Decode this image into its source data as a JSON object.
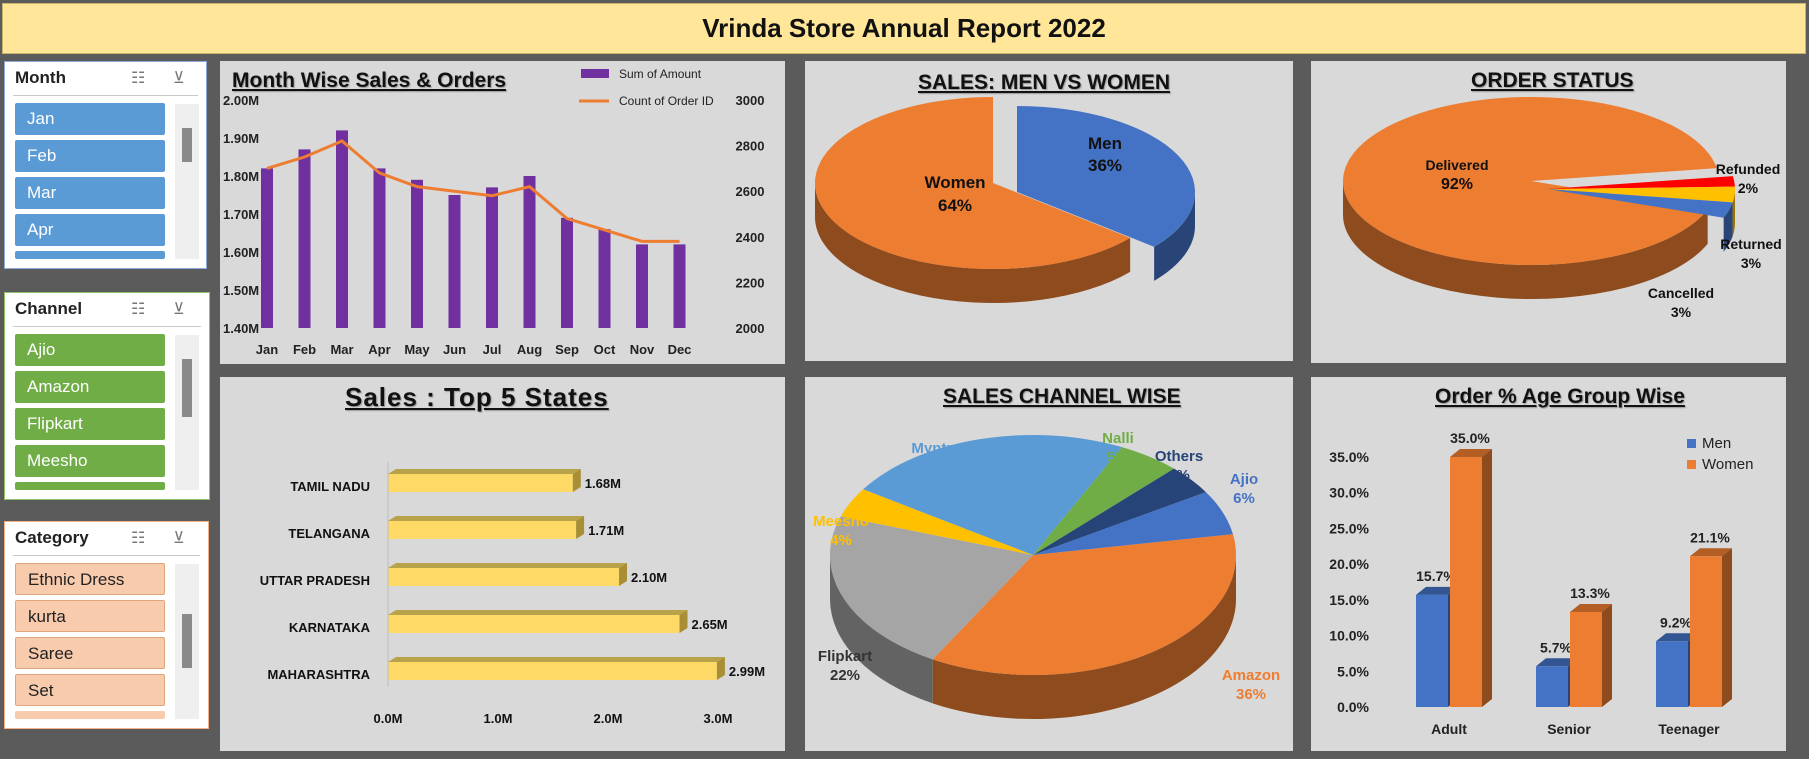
{
  "report": {
    "title": "Vrinda Store Annual Report 2022"
  },
  "slicers": {
    "month": {
      "label": "Month",
      "items": [
        "Jan",
        "Feb",
        "Mar",
        "Apr"
      ]
    },
    "channel": {
      "label": "Channel",
      "items": [
        "Ajio",
        "Amazon",
        "Flipkart",
        "Meesho"
      ]
    },
    "category": {
      "label": "Category",
      "items": [
        "Ethnic Dress",
        "kurta",
        "Saree",
        "Set"
      ]
    }
  },
  "icons": {
    "multi_select": "multi-select-icon",
    "clear_filter": "clear-filter-icon"
  },
  "colors": {
    "title_bg": "#ffe699",
    "panel_bg": "#d9d9d9",
    "purple": "#7030a0",
    "orange": "#ed7d31",
    "blue": "#4472c4",
    "month_slicer": "#5b9bd5",
    "channel_slicer": "#70ad47",
    "category_slicer": "#f8cbad"
  },
  "chart_data": [
    {
      "id": "month-wise",
      "type": "bar",
      "title": "Month Wise Sales & Orders",
      "categories": [
        "Jan",
        "Feb",
        "Mar",
        "Apr",
        "May",
        "Jun",
        "Jul",
        "Aug",
        "Sep",
        "Oct",
        "Nov",
        "Dec"
      ],
      "series": [
        {
          "name": "Sum of Amount",
          "type": "bar",
          "axis": "left",
          "values": [
            1.82,
            1.87,
            1.92,
            1.82,
            1.79,
            1.75,
            1.77,
            1.8,
            1.69,
            1.66,
            1.62,
            1.62
          ]
        },
        {
          "name": "Count of Order ID",
          "type": "line",
          "axis": "right",
          "values": [
            2700,
            2750,
            2820,
            2680,
            2620,
            2600,
            2580,
            2620,
            2480,
            2430,
            2380,
            2380
          ]
        }
      ],
      "left_ticks": [
        "1.40M",
        "1.50M",
        "1.60M",
        "1.70M",
        "1.80M",
        "1.90M",
        "2.00M"
      ],
      "ylim_left": [
        1.4,
        2.0
      ],
      "right_ticks": [
        "2000",
        "2200",
        "2400",
        "2600",
        "2800",
        "3000"
      ],
      "ylim_right": [
        2000,
        3000
      ]
    },
    {
      "id": "men-women",
      "type": "pie",
      "title": "SALES: MEN VS WOMEN",
      "slices": [
        {
          "name": "Men",
          "pct": "36%",
          "value": 36
        },
        {
          "name": "Women",
          "pct": "64%",
          "value": 64
        }
      ]
    },
    {
      "id": "order-status",
      "type": "pie",
      "title": "ORDER STATUS",
      "slices": [
        {
          "name": "Delivered",
          "pct": "92%",
          "value": 92
        },
        {
          "name": "Refunded",
          "pct": "2%",
          "value": 2
        },
        {
          "name": "Returned",
          "pct": "3%",
          "value": 3
        },
        {
          "name": "Cancelled",
          "pct": "3%",
          "value": 3
        }
      ]
    },
    {
      "id": "top-states",
      "type": "bar",
      "orientation": "horizontal",
      "title": "Sales : Top 5 States",
      "categories": [
        "TAMIL NADU",
        "TELANGANA",
        "UTTAR PRADESH",
        "KARNATAKA",
        "MAHARASHTRA"
      ],
      "values": [
        1.68,
        1.71,
        2.1,
        2.65,
        2.99
      ],
      "labels": [
        "1.68M",
        "1.71M",
        "2.10M",
        "2.65M",
        "2.99M"
      ],
      "ticks": [
        "0.0M",
        "1.0M",
        "2.0M",
        "3.0M"
      ],
      "xlim": [
        0,
        3.0
      ]
    },
    {
      "id": "channel-wise",
      "type": "pie",
      "title": "SALES CHANNEL WISE",
      "slices": [
        {
          "name": "Amazon",
          "pct": "36%",
          "value": 36
        },
        {
          "name": "Flipkart",
          "pct": "22%",
          "value": 22
        },
        {
          "name": "Meesho",
          "pct": "4%",
          "value": 4
        },
        {
          "name": "Myntra",
          "pct": "23%",
          "value": 23
        },
        {
          "name": "Nalli",
          "pct": "5%",
          "value": 5
        },
        {
          "name": "Others",
          "pct": "4%",
          "value": 4
        },
        {
          "name": "Ajio",
          "pct": "6%",
          "value": 6
        }
      ]
    },
    {
      "id": "age-group",
      "type": "bar",
      "title": "Order % Age Group Wise",
      "categories": [
        "Adult",
        "Senior",
        "Teenager"
      ],
      "series": [
        {
          "name": "Men",
          "values": [
            15.7,
            5.7,
            9.2
          ],
          "labels": [
            "15.7%",
            "5.7%",
            "9.2%"
          ]
        },
        {
          "name": "Women",
          "values": [
            35.0,
            13.3,
            21.1
          ],
          "labels": [
            "35.0%",
            "13.3%",
            "21.1%"
          ]
        }
      ],
      "ticks": [
        "0.0%",
        "5.0%",
        "10.0%",
        "15.0%",
        "20.0%",
        "25.0%",
        "30.0%",
        "35.0%"
      ],
      "ylim": [
        0,
        35
      ]
    }
  ]
}
